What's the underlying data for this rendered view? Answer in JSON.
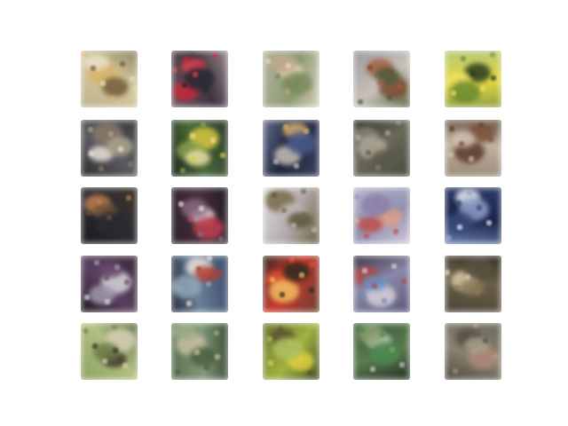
{
  "grid": {
    "rows": 5,
    "cols": 5,
    "samples": [
      {
        "bg": [
          "#b9b08c",
          "#d8cba0",
          "#8c8468"
        ],
        "blobs": [
          "#d9b36a",
          "#6f5b3a",
          "#e8e0c8"
        ]
      },
      {
        "bg": [
          "#6b5a60",
          "#3e3440",
          "#9a8a8e"
        ],
        "blobs": [
          "#c8283a",
          "#e04050",
          "#2a2a33"
        ]
      },
      {
        "bg": [
          "#b4b4a0",
          "#8c9a70",
          "#d4d0c0"
        ],
        "blobs": [
          "#e8d8c0",
          "#7a8a5a",
          "#c0a888"
        ]
      },
      {
        "bg": [
          "#9a9a9c",
          "#c8c0b8",
          "#5a6a4a"
        ],
        "blobs": [
          "#7a4a30",
          "#a06040",
          "#4a5a3a"
        ]
      },
      {
        "bg": [
          "#b8c878",
          "#e0d840",
          "#90a040"
        ],
        "blobs": [
          "#2a3a20",
          "#f0e060",
          "#6a8a30"
        ]
      },
      {
        "bg": [
          "#3a3a40",
          "#5a5a60",
          "#2a2a2e"
        ],
        "blobs": [
          "#e8e0d8",
          "#8a7a6a",
          "#b0a890"
        ]
      },
      {
        "bg": [
          "#2a3a2a",
          "#4a6a3a",
          "#1a2418"
        ],
        "blobs": [
          "#d8c840",
          "#8aa050",
          "#e8e0a0"
        ]
      },
      {
        "bg": [
          "#3a4060",
          "#1e2438",
          "#6a7090"
        ],
        "blobs": [
          "#c8c0b8",
          "#d8b070",
          "#4a5a8a"
        ]
      },
      {
        "bg": [
          "#4a4a40",
          "#6a6a58",
          "#2e2e28"
        ],
        "blobs": [
          "#8a8478",
          "#b0a898",
          "#5a5a4a"
        ]
      },
      {
        "bg": [
          "#9a8878",
          "#c0b0a0",
          "#6a5a4a"
        ],
        "blobs": [
          "#5a3a28",
          "#7a5038",
          "#d0c0b0"
        ]
      },
      {
        "bg": [
          "#1a1a1e",
          "#2e2e34",
          "#3a3428"
        ],
        "blobs": [
          "#c08050",
          "#6a5038",
          "#2a2a30"
        ]
      },
      {
        "bg": [
          "#2a2028",
          "#4a3040",
          "#1e1a20"
        ],
        "blobs": [
          "#e8e0e0",
          "#c04050",
          "#8a6a80"
        ]
      },
      {
        "bg": [
          "#e0e0e4",
          "#b0a8a8",
          "#6a6040"
        ],
        "blobs": [
          "#7a6a4a",
          "#c0b8b8",
          "#5a5838"
        ]
      },
      {
        "bg": [
          "#b8b8d0",
          "#9090b0",
          "#d0c8d8"
        ],
        "blobs": [
          "#e0a088",
          "#c05048",
          "#8a80a8"
        ]
      },
      {
        "bg": [
          "#2a3a6a",
          "#1a2448",
          "#6a80b0"
        ],
        "blobs": [
          "#e8e8f0",
          "#90a0c8",
          "#3a4a7a"
        ]
      },
      {
        "bg": [
          "#3a2a3a",
          "#5a4060",
          "#1e161e"
        ],
        "blobs": [
          "#d8d8dc",
          "#a09cb0",
          "#6a4a6a"
        ]
      },
      {
        "bg": [
          "#3a4a6a",
          "#6a8098",
          "#222a3a"
        ],
        "blobs": [
          "#e8e0d8",
          "#b04030",
          "#90a8b8"
        ]
      },
      {
        "bg": [
          "#6a4030",
          "#c83830",
          "#3a2a20"
        ],
        "blobs": [
          "#e05030",
          "#f0c060",
          "#2a2a20"
        ]
      },
      {
        "bg": [
          "#5a5878",
          "#8a88a8",
          "#3a3448"
        ],
        "blobs": [
          "#d8d0d8",
          "#b04848",
          "#6a90c0"
        ]
      },
      {
        "bg": [
          "#4a4438",
          "#6a6048",
          "#2e2a22"
        ],
        "blobs": [
          "#d8c8a8",
          "#8a7a5a",
          "#5a5040"
        ]
      },
      {
        "bg": [
          "#8aa060",
          "#b0c080",
          "#5a6a40"
        ],
        "blobs": [
          "#3a3028",
          "#d8d0b8",
          "#6a7a48"
        ]
      },
      {
        "bg": [
          "#5a7050",
          "#80987a",
          "#3a4a34"
        ],
        "blobs": [
          "#c8c0a0",
          "#4a6040",
          "#a0b088"
        ]
      },
      {
        "bg": [
          "#6a7a30",
          "#a0b040",
          "#3a4a20"
        ],
        "blobs": [
          "#e0d040",
          "#5a5030",
          "#b0c060"
        ]
      },
      {
        "bg": [
          "#3a5a38",
          "#5a7a50",
          "#223020"
        ],
        "blobs": [
          "#c8c8c0",
          "#4a8a50",
          "#8aa070"
        ]
      },
      {
        "bg": [
          "#6a6a5a",
          "#8a8270",
          "#4a4a3e"
        ],
        "blobs": [
          "#b08878",
          "#5a5048",
          "#a8a088"
        ]
      }
    ]
  }
}
